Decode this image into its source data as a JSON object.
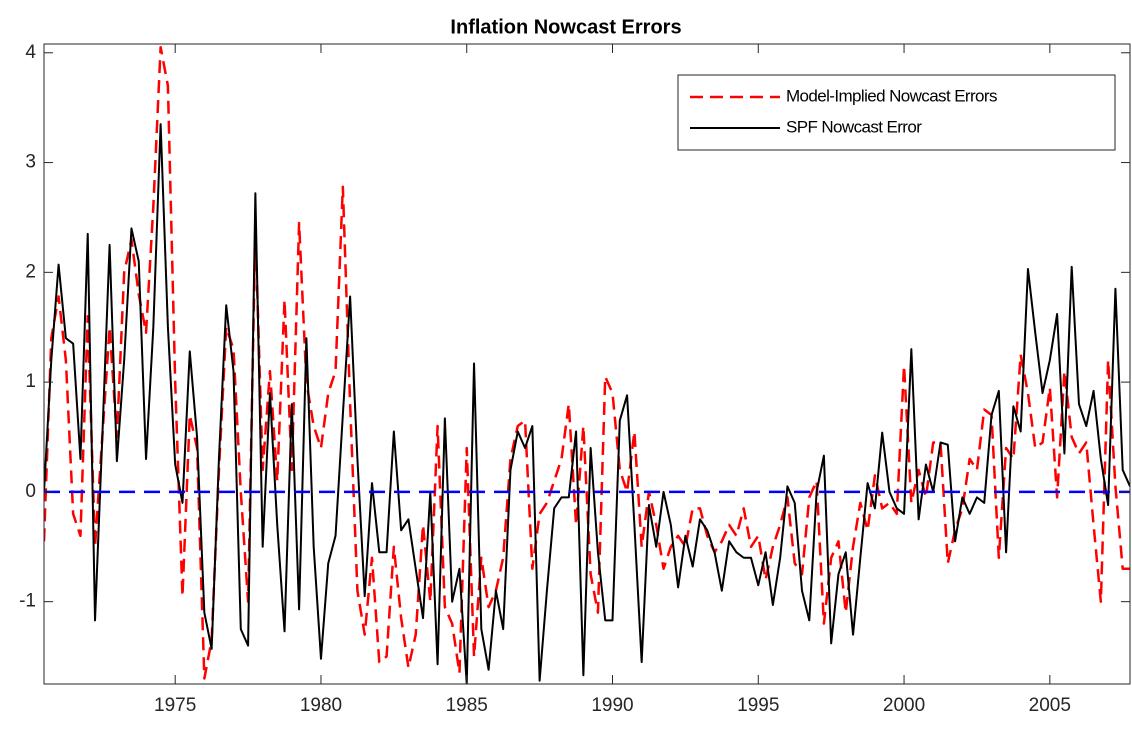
{
  "chart_data": {
    "type": "line",
    "title": "Inflation Nowcast Errors",
    "x": [
      1970.5,
      1970.75,
      1971,
      1971.25,
      1971.5,
      1971.75,
      1972,
      1972.25,
      1972.5,
      1972.75,
      1973,
      1973.25,
      1973.5,
      1973.75,
      1974,
      1974.25,
      1974.5,
      1974.75,
      1975,
      1975.25,
      1975.5,
      1975.75,
      1976,
      1976.25,
      1976.5,
      1976.75,
      1977,
      1977.25,
      1977.5,
      1977.75,
      1978,
      1978.25,
      1978.5,
      1978.75,
      1979,
      1979.25,
      1979.5,
      1979.75,
      1980,
      1980.25,
      1980.5,
      1980.75,
      1981,
      1981.25,
      1981.5,
      1981.75,
      1982,
      1982.25,
      1982.5,
      1982.75,
      1983,
      1983.25,
      1983.5,
      1983.75,
      1984,
      1984.25,
      1984.5,
      1984.75,
      1985,
      1985.25,
      1985.5,
      1985.75,
      1986,
      1986.25,
      1986.5,
      1986.75,
      1987,
      1987.25,
      1987.5,
      1987.75,
      1988,
      1988.25,
      1988.5,
      1988.75,
      1989,
      1989.25,
      1989.5,
      1989.75,
      1990,
      1990.25,
      1990.5,
      1990.75,
      1991,
      1991.25,
      1991.5,
      1991.75,
      1992,
      1992.25,
      1992.5,
      1992.75,
      1993,
      1993.25,
      1993.5,
      1993.75,
      1994,
      1994.25,
      1994.5,
      1994.75,
      1995,
      1995.25,
      1995.5,
      1995.75,
      1996,
      1996.25,
      1996.5,
      1996.75,
      1997,
      1997.25,
      1997.5,
      1997.75,
      1998,
      1998.25,
      1998.5,
      1998.75,
      1999,
      1999.25,
      1999.5,
      1999.75,
      2000,
      2000.25,
      2000.5,
      2000.75,
      2001,
      2001.25,
      2001.5,
      2001.75,
      2002,
      2002.25,
      2002.5,
      2002.75,
      2003,
      2003.25,
      2003.5,
      2003.75,
      2004,
      2004.25,
      2004.5,
      2004.75,
      2005,
      2005.25,
      2005.5,
      2005.75,
      2006,
      2006.25,
      2006.5,
      2006.75,
      2007,
      2007.25,
      2007.5,
      2007.75
    ],
    "series": [
      {
        "name": "Model-Implied Nowcast Errors",
        "color": "#ff0000",
        "dashed": true,
        "values": [
          -0.45,
          1.4,
          1.78,
          1.2,
          -0.2,
          -0.4,
          1.6,
          -0.5,
          0.5,
          1.5,
          0.5,
          2.0,
          2.3,
          1.8,
          1.45,
          2.6,
          4.05,
          3.7,
          1.0,
          -0.95,
          0.7,
          0.4,
          -1.7,
          -1.35,
          0.2,
          1.5,
          1.3,
          0.0,
          -1.0,
          2.4,
          0.2,
          1.1,
          0.1,
          1.75,
          0.2,
          2.45,
          1.0,
          0.6,
          0.4,
          0.9,
          1.1,
          2.78,
          0.8,
          -0.9,
          -1.3,
          -0.6,
          -1.55,
          -1.5,
          -0.5,
          -1.15,
          -1.6,
          -1.3,
          -0.3,
          -1.0,
          0.6,
          -1.05,
          -1.2,
          -1.65,
          0.4,
          -1.5,
          -0.6,
          -1.05,
          -0.9,
          -0.6,
          0.3,
          0.6,
          0.65,
          -0.7,
          -0.2,
          -0.1,
          0.1,
          0.3,
          0.8,
          -0.3,
          0.6,
          -0.75,
          -1.1,
          1.05,
          0.9,
          0.2,
          0.0,
          0.55,
          -0.5,
          0.0,
          -0.3,
          -0.7,
          -0.5,
          -0.4,
          -0.5,
          -0.15,
          -0.15,
          -0.4,
          -0.55,
          -0.45,
          -0.3,
          -0.4,
          -0.15,
          -0.5,
          -0.4,
          -0.8,
          -0.5,
          -0.3,
          -0.05,
          -0.65,
          -0.75,
          -0.05,
          0.1,
          -1.2,
          -0.6,
          -0.45,
          -1.1,
          -0.5,
          -0.1,
          -0.35,
          0.15,
          -0.15,
          -0.1,
          -0.2,
          1.15,
          -0.1,
          0.2,
          -0.05,
          0.45,
          0.45,
          -0.65,
          -0.35,
          -0.15,
          0.3,
          0.2,
          0.75,
          0.7,
          -0.6,
          0.4,
          0.3,
          1.25,
          0.9,
          0.4,
          0.45,
          0.95,
          -0.05,
          1.1,
          0.5,
          0.35,
          0.45,
          -0.3,
          -1.0,
          1.2,
          0.05,
          -0.7,
          -0.7
        ]
      },
      {
        "name": "SPF Nowcast Error",
        "color": "#000000",
        "dashed": false,
        "values": [
          0.0,
          1.2,
          2.07,
          1.4,
          1.35,
          0.3,
          2.35,
          -1.17,
          0.5,
          2.25,
          0.28,
          1.2,
          2.4,
          2.1,
          0.3,
          1.5,
          3.35,
          1.5,
          0.25,
          -0.1,
          1.28,
          0.5,
          -1.1,
          -1.43,
          0.3,
          1.7,
          1.1,
          -1.25,
          -1.4,
          2.72,
          -0.5,
          0.9,
          -0.3,
          -1.27,
          0.8,
          -1.07,
          1.4,
          -0.5,
          -1.52,
          -0.65,
          -0.4,
          0.7,
          1.78,
          0.3,
          -0.95,
          0.08,
          -0.55,
          -0.55,
          0.55,
          -0.35,
          -0.25,
          -0.7,
          -1.15,
          0.0,
          -1.57,
          0.67,
          -1.0,
          -0.7,
          -1.75,
          1.17,
          -1.25,
          -1.62,
          -0.9,
          -1.25,
          0.2,
          0.55,
          0.4,
          0.6,
          -1.72,
          -0.9,
          -0.15,
          -0.05,
          -0.05,
          0.55,
          -1.67,
          0.4,
          -0.55,
          -1.17,
          -1.17,
          0.65,
          0.88,
          -0.3,
          -1.55,
          -0.12,
          -0.5,
          0.0,
          -0.3,
          -0.87,
          -0.4,
          -0.68,
          -0.25,
          -0.35,
          -0.55,
          -0.9,
          -0.45,
          -0.55,
          -0.6,
          -0.6,
          -0.85,
          -0.55,
          -1.03,
          -0.6,
          0.05,
          -0.1,
          -0.9,
          -1.17,
          0.0,
          0.33,
          -1.38,
          -0.75,
          -0.55,
          -1.3,
          -0.6,
          0.08,
          -0.15,
          0.54,
          0.0,
          -0.15,
          -0.2,
          1.3,
          -0.25,
          0.25,
          0.0,
          0.45,
          0.43,
          -0.45,
          -0.05,
          -0.2,
          -0.05,
          -0.1,
          0.7,
          0.92,
          -0.55,
          0.78,
          0.55,
          2.03,
          1.45,
          0.9,
          1.2,
          1.62,
          0.35,
          2.05,
          0.8,
          0.6,
          0.92,
          0.3,
          -0.12,
          1.85,
          0.2,
          0.05
        ]
      }
    ],
    "reference_line": {
      "value": 0,
      "color": "#0000ff"
    },
    "xlim": [
      1970.5,
      2007.75
    ],
    "xticks": [
      1975,
      1980,
      1985,
      1990,
      1995,
      2000,
      2005
    ],
    "ylim": [
      -1.75,
      4.08
    ],
    "yticks": [
      -1,
      0,
      1,
      2,
      3,
      4
    ],
    "legend": "upper-right",
    "grid": false
  }
}
